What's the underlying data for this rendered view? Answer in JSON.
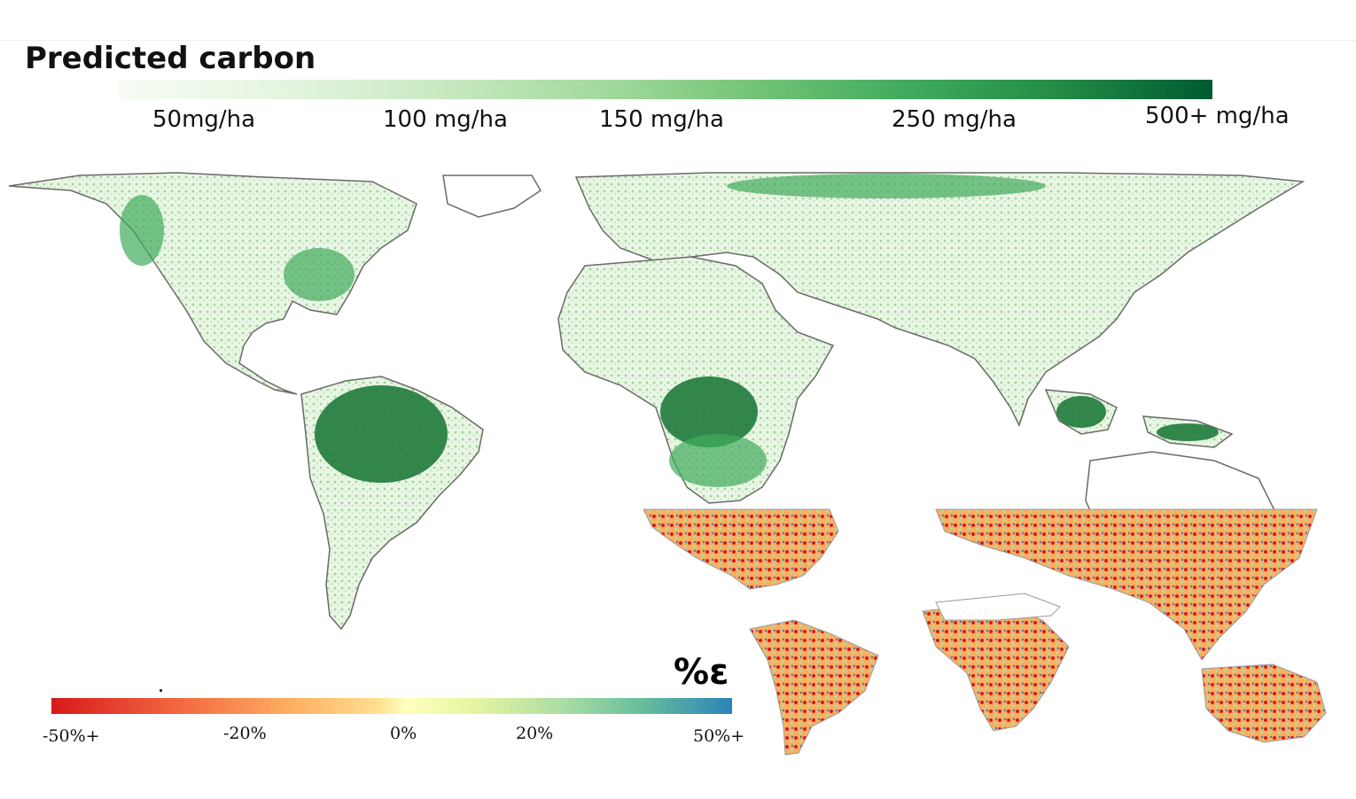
{
  "title": "Predicted carbon",
  "carbon_legend": {
    "colors": [
      "#f7fcf5",
      "#e5f5e0",
      "#c7e9c0",
      "#a1d99b",
      "#74c476",
      "#41ab5d",
      "#238b45",
      "#005a32"
    ],
    "ticks": [
      "50mg/ha",
      "100 mg/ha",
      "150 mg/ha",
      "250 mg/ha",
      "500+ mg/ha"
    ]
  },
  "error_legend": {
    "symbol": "%ε",
    "colors": [
      "#d7191c",
      "#f46d43",
      "#fdae61",
      "#fee090",
      "#ffffbf",
      "#abdda4",
      "#66bd9b",
      "#2b83ba"
    ],
    "ticks": [
      "-50%+",
      "-20%",
      "0%",
      "20%",
      "50%+"
    ]
  },
  "maps": {
    "main": {
      "subject": "world-map-predicted-carbon"
    },
    "inset": {
      "subject": "world-map-percent-error"
    }
  }
}
